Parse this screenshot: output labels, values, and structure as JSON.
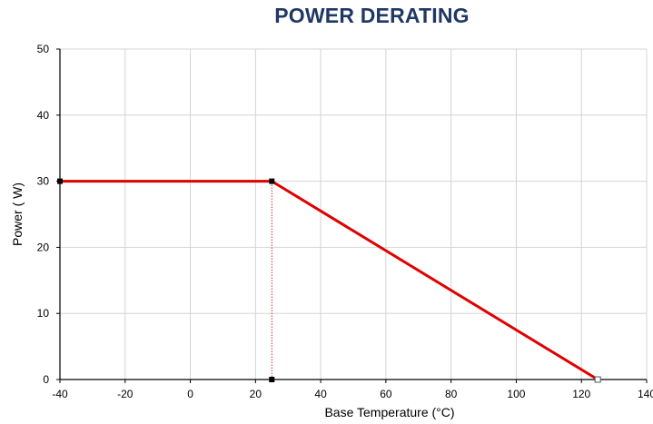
{
  "chart_data": {
    "type": "line",
    "title": "POWER DERATING",
    "xlabel": "Base Temperature  (°C)",
    "ylabel": "Power ( W)",
    "xlim": [
      -40,
      140
    ],
    "ylim": [
      0,
      50
    ],
    "xticks": [
      -40,
      -20,
      0,
      20,
      40,
      60,
      80,
      100,
      120,
      140
    ],
    "yticks": [
      0,
      10,
      20,
      30,
      40,
      50
    ],
    "xtick_labels": [
      "-40",
      "-20",
      "0",
      "20",
      "40",
      "60",
      "80",
      "100",
      "120",
      "140"
    ],
    "ytick_labels": [
      "0",
      "10",
      "20",
      "30",
      "40",
      "50"
    ],
    "grid": true,
    "series": [
      {
        "color": "#e00000",
        "points": [
          {
            "x": -40,
            "y": 30
          },
          {
            "x": 25,
            "y": 30
          },
          {
            "x": 125,
            "y": 0
          }
        ]
      }
    ],
    "markers": [
      {
        "x": -40,
        "y": 30,
        "style": "filled"
      },
      {
        "x": 25,
        "y": 30,
        "style": "filled"
      },
      {
        "x": 25,
        "y": 0,
        "style": "filled"
      },
      {
        "x": 125,
        "y": 0,
        "style": "hollow"
      }
    ],
    "reference_lines": [
      {
        "x": 25,
        "y_from": 0,
        "y_to": 30,
        "style": "dotted",
        "color": "#c00000"
      }
    ]
  }
}
